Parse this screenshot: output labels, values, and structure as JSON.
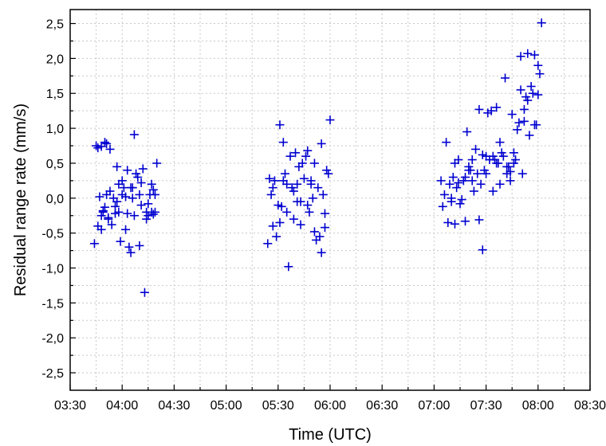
{
  "chart_data": {
    "type": "scatter",
    "title": "",
    "xlabel": "Time (UTC)",
    "ylabel": "Residual range rate (mm/s)",
    "x_tick_labels": [
      "03:30",
      "04:00",
      "04:30",
      "05:00",
      "05:30",
      "06:00",
      "06:30",
      "07:00",
      "07:30",
      "08:00",
      "08:30"
    ],
    "y_tick_labels": [
      "2,5",
      "2,0",
      "1,5",
      "1,0",
      "0,5",
      "0,0",
      "-0,5",
      "-1,0",
      "-1,5",
      "-2,0",
      "-2,5"
    ],
    "y_ticks": [
      2.5,
      2.0,
      1.5,
      1.0,
      0.5,
      0.0,
      -0.5,
      -1.0,
      -1.5,
      -2.0,
      -2.5
    ],
    "xlim": [
      "03:30",
      "08:30"
    ],
    "ylim": [
      -2.75,
      2.7
    ],
    "grid": true,
    "marker": "plus",
    "color": "#0000d0",
    "series": [
      {
        "x": [
          "03:44",
          "03:45",
          "03:46",
          "03:46",
          "03:47",
          "03:48",
          "03:48",
          "03:49",
          "03:50",
          "03:50",
          "03:51",
          "03:51",
          "03:52",
          "03:53",
          "03:54",
          "03:55",
          "03:56",
          "03:57",
          "03:57",
          "03:58",
          "03:59",
          "04:00",
          "04:01",
          "04:02",
          "04:03",
          "04:04",
          "04:05",
          "04:05",
          "04:06",
          "04:07",
          "04:08",
          "04:09",
          "04:10",
          "04:11",
          "04:12",
          "04:13",
          "04:14",
          "04:15",
          "04:16",
          "04:17",
          "04:18",
          "04:18",
          "04:19",
          "04:19",
          "04:20",
          "03:49",
          "03:52",
          "03:56",
          "04:00",
          "04:03",
          "04:07",
          "04:11",
          "04:15",
          "03:48",
          "03:53",
          "03:58",
          "04:02",
          "04:06",
          "04:10",
          "04:14",
          "04:17",
          "05:24",
          "05:25",
          "05:26",
          "05:27",
          "05:28",
          "05:29",
          "05:30",
          "05:31",
          "05:32",
          "05:33",
          "05:34",
          "05:35",
          "05:36",
          "05:37",
          "05:38",
          "05:39",
          "05:40",
          "05:41",
          "05:42",
          "05:43",
          "05:44",
          "05:45",
          "05:46",
          "05:47",
          "05:48",
          "05:49",
          "05:50",
          "05:51",
          "05:52",
          "05:53",
          "05:54",
          "05:55",
          "05:56",
          "05:57",
          "05:58",
          "05:59",
          "06:00",
          "05:27",
          "05:31",
          "05:35",
          "05:39",
          "05:43",
          "05:47",
          "05:51",
          "05:55",
          "05:33",
          "05:41",
          "05:49",
          "05:57",
          "07:04",
          "07:05",
          "07:06",
          "07:07",
          "07:08",
          "07:09",
          "07:10",
          "07:11",
          "07:12",
          "07:13",
          "07:14",
          "07:15",
          "07:16",
          "07:17",
          "07:18",
          "07:19",
          "07:20",
          "07:21",
          "07:22",
          "07:23",
          "07:24",
          "07:25",
          "07:26",
          "07:27",
          "07:28",
          "07:29",
          "07:30",
          "07:31",
          "07:32",
          "07:33",
          "07:34",
          "07:35",
          "07:36",
          "07:37",
          "07:38",
          "07:39",
          "07:40",
          "07:41",
          "07:42",
          "07:43",
          "07:44",
          "07:45",
          "07:46",
          "07:47",
          "07:48",
          "07:49",
          "07:50",
          "07:51",
          "07:52",
          "07:53",
          "07:54",
          "07:55",
          "07:56",
          "07:57",
          "07:58",
          "07:59",
          "08:00",
          "08:01",
          "08:02",
          "07:10",
          "07:14",
          "07:18",
          "07:22",
          "07:26",
          "07:30",
          "07:34",
          "07:38",
          "07:42",
          "07:46",
          "07:50",
          "07:54",
          "07:58",
          "07:12",
          "07:20",
          "07:28",
          "07:36",
          "07:44",
          "07:52",
          "08:00"
        ],
        "y": [
          -0.65,
          0.75,
          0.72,
          -0.4,
          0.02,
          -0.45,
          0.74,
          -0.18,
          0.8,
          -0.13,
          0.78,
          0.05,
          -0.28,
          0.7,
          -0.38,
          0.0,
          -0.22,
          -0.05,
          0.45,
          0.2,
          -0.62,
          0.25,
          0.15,
          -0.45,
          -0.22,
          -0.7,
          0.15,
          -0.78,
          0.0,
          -0.25,
          0.35,
          0.3,
          -0.68,
          0.22,
          0.42,
          -1.35,
          -0.2,
          -0.25,
          0.05,
          -0.2,
          0.12,
          -0.23,
          -0.2,
          0.05,
          0.5,
          -0.2,
          -0.3,
          -0.12,
          0.05,
          0.4,
          0.91,
          -0.1,
          -0.08,
          -0.25,
          0.1,
          -0.2,
          0.02,
          0.15,
          0.05,
          -0.3,
          0.2,
          -0.65,
          0.28,
          0.05,
          -0.4,
          0.25,
          -0.55,
          -0.1,
          1.05,
          -0.12,
          0.8,
          0.35,
          -0.2,
          -0.98,
          0.6,
          0.15,
          0.1,
          0.65,
          0.2,
          0.45,
          -0.05,
          0.5,
          0.28,
          0.6,
          0.68,
          -0.2,
          0.25,
          0.0,
          0.5,
          -0.6,
          0.15,
          -0.55,
          -0.78,
          0.05,
          -0.42,
          0.4,
          0.35,
          1.12,
          0.15,
          -0.35,
          0.2,
          -0.3,
          -0.38,
          -0.1,
          -0.48,
          0.78,
          0.25,
          -0.05,
          0.2,
          -0.22,
          0.25,
          -0.12,
          0.05,
          0.8,
          -0.35,
          0.2,
          0.0,
          0.3,
          -0.37,
          0.15,
          0.55,
          -0.08,
          -0.02,
          0.25,
          -0.33,
          0.95,
          0.45,
          0.4,
          0.25,
          0.1,
          0.7,
          0.35,
          1.27,
          0.2,
          -0.74,
          0.4,
          0.6,
          1.22,
          0.55,
          1.25,
          0.1,
          0.55,
          1.3,
          0.5,
          0.8,
          0.65,
          0.6,
          1.72,
          0.35,
          0.45,
          0.25,
          1.2,
          0.5,
          0.55,
          0.98,
          1.08,
          2.03,
          0.35,
          1.1,
          1.45,
          2.07,
          0.9,
          1.6,
          1.5,
          2.05,
          1.05,
          1.9,
          1.78,
          2.51,
          -0.05,
          0.22,
          0.3,
          0.55,
          -0.31,
          0.35,
          0.6,
          0.2,
          0.45,
          0.65,
          1.55,
          1.4,
          1.05,
          0.5,
          0.4,
          0.62,
          0.5,
          0.38,
          1.27,
          1.48
        ]
      }
    ]
  }
}
